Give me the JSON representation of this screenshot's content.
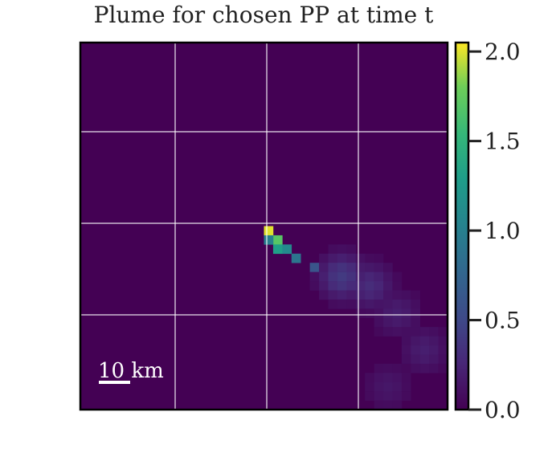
{
  "chart_data": {
    "type": "heatmap",
    "title": "Plume for chosen PP at time t",
    "xlabel": "",
    "ylabel": "",
    "grid": true,
    "colormap": "viridis",
    "colorbar": {
      "vmin": 0.0,
      "vmax": 2.05,
      "ticks": [
        0.0,
        0.5,
        1.0,
        1.5,
        2.0
      ],
      "tick_labels": [
        "0.0",
        "0.5",
        "1.0",
        "1.5",
        "2.0"
      ]
    },
    "scale_bar": {
      "label": "10 km",
      "length_km": 10
    },
    "grid_cells": 40,
    "source_cell": [
      20,
      20
    ],
    "peak_value": 2.0,
    "plume_samples": [
      {
        "col": 20,
        "row": 20,
        "value": 2.0
      },
      {
        "col": 21,
        "row": 21,
        "value": 1.7
      },
      {
        "col": 20,
        "row": 21,
        "value": 1.0
      },
      {
        "col": 21,
        "row": 22,
        "value": 1.3
      },
      {
        "col": 22,
        "row": 22,
        "value": 1.1
      },
      {
        "col": 23,
        "row": 23,
        "value": 0.9
      },
      {
        "col": 25,
        "row": 24,
        "value": 0.6
      },
      {
        "col": 28,
        "row": 25,
        "value": 0.4
      },
      {
        "col": 31,
        "row": 26,
        "value": 0.3
      },
      {
        "col": 34,
        "row": 29,
        "value": 0.2
      },
      {
        "col": 37,
        "row": 33,
        "value": 0.2
      },
      {
        "col": 33,
        "row": 37,
        "value": 0.15
      }
    ]
  }
}
